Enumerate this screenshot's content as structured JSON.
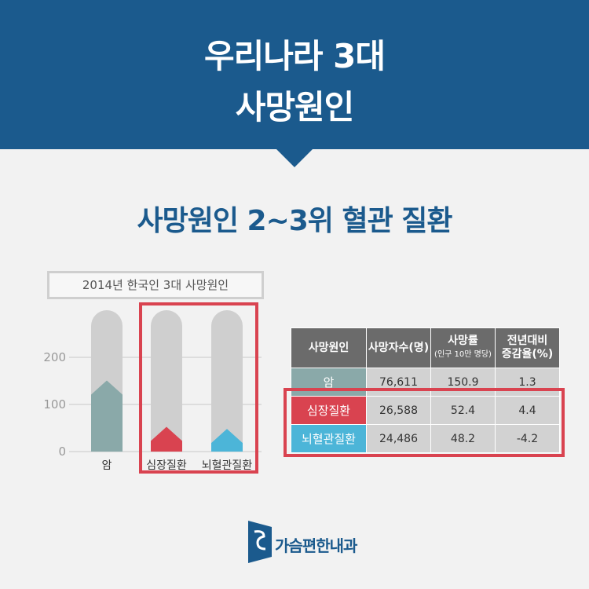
{
  "header": {
    "title_line1": "우리나라 3대",
    "title_line2": "사망원인"
  },
  "subtitle": "사망원인 2~3위 혈관 질환",
  "chart_caption": "2014년 한국인 3대 사망원인",
  "chart_data": {
    "type": "bar",
    "title": "2014년 한국인 3대 사망원인",
    "categories": [
      "암",
      "심장질환",
      "뇌혈관질환"
    ],
    "values": [
      150.9,
      52.4,
      48.2
    ],
    "colors": [
      "#8aa9a9",
      "#d94350",
      "#4cb5d8"
    ],
    "yticks": [
      0,
      100,
      200
    ],
    "ylim": [
      0,
      300
    ],
    "grid": true
  },
  "table": {
    "headers": [
      {
        "label": "사망원인",
        "sub": ""
      },
      {
        "label": "사망자수(명)",
        "sub": ""
      },
      {
        "label": "사망률",
        "sub": "(인구 10만 명당)"
      },
      {
        "label": "전년대비",
        "sub": "증감율(%)"
      }
    ],
    "rows": [
      {
        "cause": "암",
        "deaths": "76,611",
        "rate": "150.9",
        "change": "1.3",
        "color": "#8aa9a9"
      },
      {
        "cause": "심장질환",
        "deaths": "26,588",
        "rate": "52.4",
        "change": "4.4",
        "color": "#d94350"
      },
      {
        "cause": "뇌혈관질환",
        "deaths": "24,486",
        "rate": "48.2",
        "change": "-4.2",
        "color": "#4cb5d8"
      }
    ]
  },
  "logo": {
    "text": "가슴편한내과"
  },
  "colors": {
    "brand": "#1b5a8d",
    "highlight": "#d94350",
    "track": "#cfcfcf"
  }
}
